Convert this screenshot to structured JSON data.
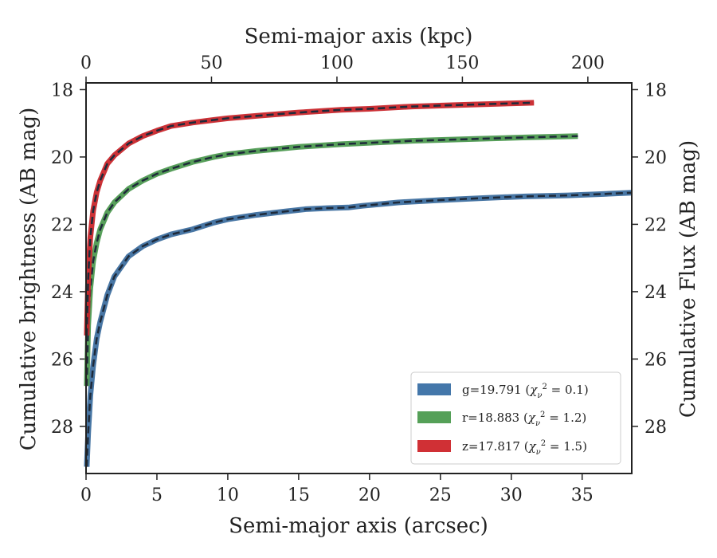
{
  "chart_data": {
    "type": "line",
    "xlabel_bottom": "Semi-major axis (arcsec)",
    "xlabel_top": "Semi-major axis (kpc)",
    "ylabel_left": "Cumulative brightness (AB mag)",
    "ylabel_right": "Cumulative Flux (AB mag)",
    "xlim": [
      0,
      38.5
    ],
    "ylim": [
      29.4,
      17.8
    ],
    "y_inverted": true,
    "xticks_bottom": [
      "0",
      "5",
      "10",
      "15",
      "20",
      "25",
      "30",
      "35"
    ],
    "xticks_top": [
      "0",
      "50",
      "100",
      "150",
      "200"
    ],
    "top_axis_max_kpc": 217.5,
    "yticks": [
      "18",
      "20",
      "22",
      "24",
      "26",
      "28"
    ],
    "grid": false,
    "legend_position": "lower-right",
    "legend": [
      {
        "band": "g",
        "text": "g=19.791 (",
        "chi": "0.1",
        "color": "#4477aa"
      },
      {
        "band": "r",
        "text": "r=18.883 (",
        "chi": "1.2",
        "color": "#55a058"
      },
      {
        "band": "z",
        "text": "z=17.817 (",
        "chi": "1.5",
        "color": "#d03035"
      }
    ],
    "series": [
      {
        "name": "g=19.791",
        "color": "#4477aa",
        "band_color": "#3e6f9f",
        "x": [
          0.05,
          0.15,
          0.3,
          0.5,
          0.75,
          1.0,
          1.5,
          2.0,
          3.0,
          4.0,
          5.0,
          6.0,
          7.5,
          9.0,
          10.0,
          12.0,
          14.0,
          15.5,
          17.0,
          18.5,
          19.5,
          22.0,
          25.0,
          28.0,
          31.0,
          34.0,
          36.5,
          38.5
        ],
        "values": [
          29.2,
          28.2,
          27.1,
          26.2,
          25.4,
          24.9,
          24.1,
          23.55,
          22.95,
          22.65,
          22.45,
          22.3,
          22.15,
          21.95,
          21.85,
          21.72,
          21.62,
          21.55,
          21.52,
          21.5,
          21.45,
          21.35,
          21.28,
          21.22,
          21.17,
          21.14,
          21.1,
          21.06
        ]
      },
      {
        "name": "r=18.883",
        "color": "#55a058",
        "band_color": "#4e9a51",
        "x": [
          0.05,
          0.15,
          0.3,
          0.5,
          0.75,
          1.0,
          1.5,
          2.0,
          3.0,
          4.0,
          5.0,
          6.0,
          7.5,
          9.0,
          10.0,
          12.0,
          15.0,
          18.0,
          20.0,
          23.0,
          27.0,
          31.0,
          34.7
        ],
        "values": [
          26.8,
          25.0,
          23.9,
          23.1,
          22.55,
          22.15,
          21.65,
          21.35,
          20.95,
          20.7,
          20.5,
          20.35,
          20.15,
          20.0,
          19.92,
          19.82,
          19.7,
          19.62,
          19.58,
          19.52,
          19.47,
          19.42,
          19.38
        ]
      },
      {
        "name": "z=17.817",
        "color": "#d03035",
        "band_color": "#c9262b",
        "x": [
          0.05,
          0.15,
          0.3,
          0.5,
          0.75,
          1.0,
          1.5,
          2.0,
          3.0,
          4.0,
          5.0,
          6.0,
          7.5,
          9.0,
          10.0,
          12.0,
          15.0,
          18.0,
          20.0,
          23.0,
          26.0,
          29.0,
          31.6
        ],
        "values": [
          25.3,
          23.6,
          22.4,
          21.6,
          21.05,
          20.7,
          20.2,
          19.95,
          19.6,
          19.38,
          19.22,
          19.08,
          18.98,
          18.9,
          18.85,
          18.78,
          18.68,
          18.6,
          18.57,
          18.5,
          18.46,
          18.42,
          18.39
        ]
      }
    ]
  }
}
